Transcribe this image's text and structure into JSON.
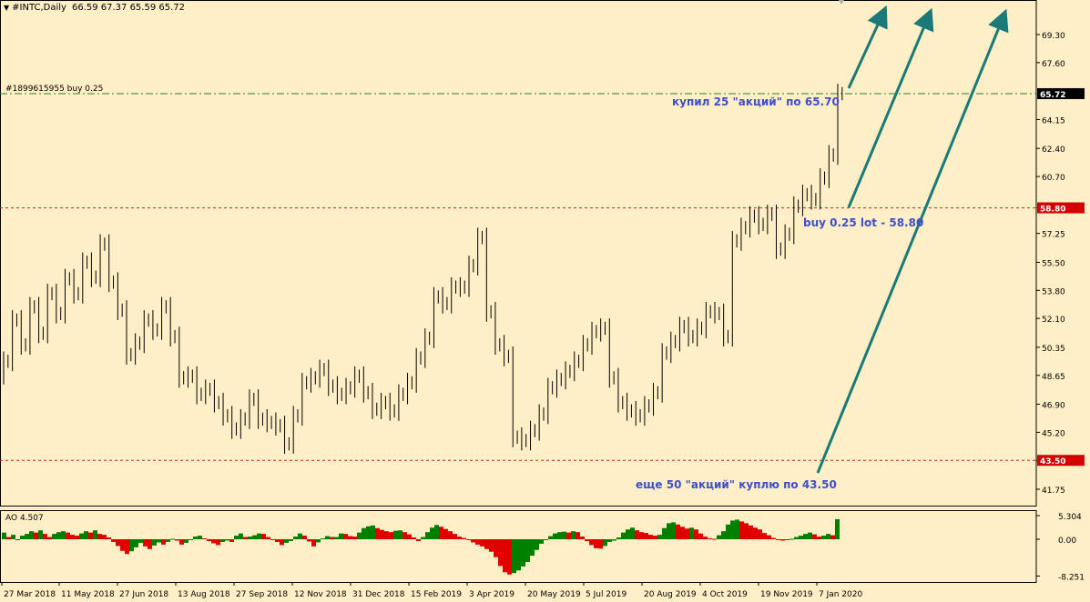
{
  "header": {
    "symbol": "#INTC,Daily",
    "ohlc": "66.59 67.37 65.59 65.72"
  },
  "order_label": "#1899615955 buy 0.25",
  "colors": {
    "background": "#FFEFC6",
    "candle": "#000000",
    "order_line": "#2E7D32",
    "level_line": "#C62828",
    "arrow": "#1A7A7A",
    "annotation_text": "#3F4FC8",
    "ao_up": "#008000",
    "ao_down": "#E00000",
    "price_marker": "#000000",
    "level_marker": "#D50000"
  },
  "chart_data": [
    {
      "type": "candlestick",
      "title": "#INTC,Daily",
      "x_ticks": [
        "27 Mar 2018",
        "11 May 2018",
        "27 Jun 2018",
        "13 Aug 2018",
        "27 Sep 2018",
        "12 Nov 2018",
        "31 Dec 2018",
        "15 Feb 2019",
        "3 Apr 2019",
        "20 May 2019",
        "5 Jul 2019",
        "20 Aug 2019",
        "4 Oct 2019",
        "19 Nov 2019",
        "7 Jan 2020"
      ],
      "y_ticks": [
        "69.30",
        "67.60",
        "65.72",
        "64.15",
        "62.40",
        "60.70",
        "58.80",
        "57.25",
        "55.50",
        "53.80",
        "52.10",
        "50.35",
        "48.65",
        "46.90",
        "45.20",
        "43.50",
        "41.75"
      ],
      "ylim": [
        40.9,
        70.8
      ],
      "current_price": 65.72,
      "series": [
        {
          "name": "INTC",
          "close": [
            49.5,
            52.0,
            50.5,
            52.8,
            51.2,
            53.6,
            52.4,
            54.5,
            53.6,
            55.5,
            54.6,
            56.6,
            54.3,
            52.6,
            49.9,
            50.6,
            52.0,
            51.4,
            52.8,
            51.0,
            48.5,
            48.6,
            47.5,
            47.8,
            47.0,
            46.2,
            45.4,
            46.0,
            47.2,
            46.0,
            45.8,
            45.6,
            44.5,
            46.2,
            48.2,
            48.5,
            49.0,
            48.0,
            47.5,
            47.9,
            48.6,
            47.6,
            46.6,
            47.0,
            46.5,
            47.5,
            48.2,
            49.7,
            50.9,
            53.4,
            53.0,
            54.0,
            54.0,
            55.3,
            57.0,
            52.5,
            50.5,
            49.8,
            44.9,
            44.7,
            45.3,
            46.3,
            47.9,
            48.4,
            48.9,
            49.5,
            50.5,
            51.3,
            51.5,
            48.5,
            47.0,
            46.5,
            46.2,
            46.8,
            47.6,
            50.0,
            50.7,
            51.6,
            51.0,
            51.5,
            52.5,
            52.4,
            51.0,
            56.8,
            57.6,
            58.3,
            57.8,
            58.4,
            56.3,
            57.2,
            58.9,
            59.6,
            59.3,
            60.6,
            62.0,
            65.72
          ]
        },
        {
          "name": "levels",
          "buy_order": 65.72,
          "level_58_80": 58.8,
          "level_43_50": 43.5
        }
      ],
      "annotations": [
        "купил 25 \"акций\" по 65.70",
        "buy 0.25 lot - 58.80",
        "еще 50 \"акций\" куплю по 43.50"
      ],
      "grid": false
    },
    {
      "type": "histogram",
      "title": "AO 4.507",
      "y_ticks": [
        "5.304",
        "0.00",
        "-8.251"
      ],
      "ylim": [
        -8.72,
        6.0
      ],
      "current_value": 4.507,
      "series": [
        {
          "name": "AO",
          "values": [
            1.5,
            0.5,
            1.0,
            0.0,
            0.8,
            1.2,
            1.8,
            1.5,
            2.0,
            1.2,
            0.5,
            1.2,
            1.6,
            1.8,
            1.5,
            1.0,
            0.8,
            1.3,
            1.8,
            1.5,
            2.0,
            1.2,
            1.0,
            0.4,
            -0.6,
            -1.5,
            -2.6,
            -3.3,
            -2.7,
            -1.8,
            -0.8,
            -1.6,
            -2.2,
            -1.4,
            -0.7,
            -1.2,
            -0.6,
            0.1,
            -0.3,
            -1.2,
            -0.8,
            -0.2,
            0.6,
            0.8,
            0.2,
            -0.4,
            -0.9,
            -1.3,
            -0.6,
            -0.3,
            -0.6,
            0.8,
            1.3,
            0.5,
            0.6,
            0.9,
            1.3,
            1.2,
            0.5,
            -0.2,
            -0.6,
            -1.3,
            -0.8,
            -0.4,
            0.6,
            1.3,
            0.8,
            -0.5,
            -1.6,
            -0.7,
            0.2,
            0.7,
            0.5,
            0.5,
            1.3,
            1.2,
            0.7,
            0.6,
            1.5,
            2.5,
            2.9,
            3.1,
            2.5,
            2.1,
            1.8,
            1.6,
            1.9,
            2.0,
            1.6,
            1.1,
            0.4,
            -0.4,
            0.5,
            1.6,
            2.6,
            3.2,
            2.8,
            2.3,
            1.8,
            1.2,
            0.6,
            0.3,
            -0.2,
            -0.7,
            -1.2,
            -1.6,
            -2.2,
            -2.8,
            -4.0,
            -6.0,
            -7.4,
            -7.9,
            -7.6,
            -7.0,
            -6.1,
            -5.1,
            -3.7,
            -2.4,
            -1.0,
            -0.1,
            0.7,
            1.3,
            1.6,
            1.7,
            1.5,
            1.8,
            1.6,
            0.6,
            -0.4,
            -1.3,
            -2.0,
            -2.1,
            -1.5,
            -0.6,
            -0.3,
            0.4,
            1.5,
            2.2,
            2.6,
            2.0,
            1.6,
            1.4,
            1.0,
            0.8,
            1.0,
            2.5,
            3.6,
            3.8,
            3.3,
            2.8,
            2.4,
            2.6,
            2.2,
            1.3,
            0.6,
            0.2,
            0.1,
            0.9,
            1.8,
            3.3,
            4.2,
            4.4,
            4.0,
            3.6,
            3.1,
            2.6,
            2.2,
            1.4,
            0.9,
            0.3,
            -0.1,
            -0.3,
            -0.2,
            0.1,
            0.5,
            0.8,
            1.2,
            1.5,
            1.1,
            0.6,
            0.8,
            1.2,
            0.9,
            4.507
          ]
        }
      ]
    }
  ]
}
